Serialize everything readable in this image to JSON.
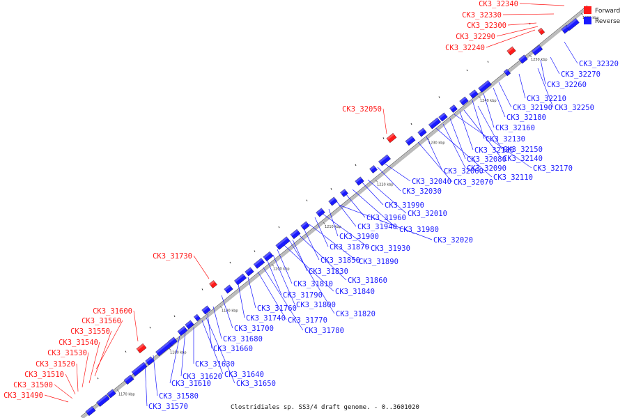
{
  "caption": "Clostridiales sp. SS3/4 draft genome. - 0..3601020",
  "legend": [
    {
      "label": "Forward",
      "color": "#ff1a1a"
    },
    {
      "label": "Reverse",
      "color": "#1a1aff"
    }
  ],
  "colors": {
    "forward": "#ff1a1a",
    "reverse": "#1a1aff",
    "backbone": "#999999"
  },
  "ticks": [
    "1170 kbp",
    "1180 kbp",
    "1190 kbp",
    "1200 kbp",
    "1210 kbp",
    "1220 kbp",
    "1230 kbp",
    "1240 kbp",
    "1250 kbp",
    "1260 kbp"
  ],
  "forward_labels": [
    "CK3_32340",
    "CK3_32330",
    "CK3_32300",
    "CK3_32290",
    "CK3_32240",
    "CK3_32050",
    "CK3_31730",
    "CK3_31600",
    "CK3_31560",
    "CK3_31550",
    "CK3_31540",
    "CK3_31530",
    "CK3_31520",
    "CK3_31510",
    "CK3_31500",
    "CK3_31490"
  ],
  "reverse_labels": [
    "CK3_32320",
    "CK3_32270",
    "CK3_32260",
    "CK3_32210",
    "CK3_32250",
    "CK3_32190",
    "CK3_32180",
    "CK3_32160",
    "CK3_32150",
    "CK3_32130",
    "CK3_32140",
    "CK3_32100",
    "CK3_32170",
    "CK3_32080",
    "CK3_32090",
    "CK3_32110",
    "CK3_32060",
    "CK3_32070",
    "CK3_32040",
    "CK3_32030",
    "CK3_31990",
    "CK3_32010",
    "CK3_31960",
    "CK3_31980",
    "CK3_31940",
    "CK3_31900",
    "CK3_32020",
    "CK3_31870",
    "CK3_31930",
    "CK3_31850",
    "CK3_31890",
    "CK3_31830",
    "CK3_31860",
    "CK3_31810",
    "CK3_31840",
    "CK3_31790",
    "CK3_31800",
    "CK3_31820",
    "CK3_31760",
    "CK3_31740",
    "CK3_31770",
    "CK3_31780",
    "CK3_31700",
    "CK3_31680",
    "CK3_31660",
    "CK3_31630",
    "CK3_31620",
    "CK3_31640",
    "CK3_31610",
    "CK3_31650",
    "CK3_31580",
    "CK3_31570"
  ]
}
